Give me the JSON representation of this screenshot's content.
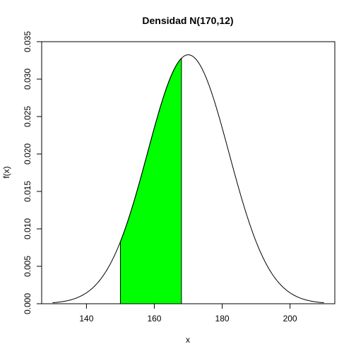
{
  "chart_data": {
    "type": "area",
    "title": "Densidad N(170,12)",
    "xlabel": "x",
    "ylabel": "f(x)",
    "distribution": {
      "mean": 170,
      "sd": 12
    },
    "curve_range": [
      130,
      210
    ],
    "shaded_interval": [
      150,
      168
    ],
    "xlim": [
      126.8,
      213.2
    ],
    "ylim": [
      0,
      0.035
    ],
    "xticks": [
      140,
      160,
      180,
      200
    ],
    "yticks": [
      0.0,
      0.005,
      0.01,
      0.015,
      0.02,
      0.025,
      0.03,
      0.035
    ],
    "xtick_labels": [
      "140",
      "160",
      "180",
      "200"
    ],
    "ytick_labels": [
      "0.000",
      "0.005",
      "0.010",
      "0.015",
      "0.020",
      "0.025",
      "0.030",
      "0.035"
    ],
    "fill_color": "#00ff00",
    "line_color": "#000000",
    "grid": false,
    "legend": "none"
  }
}
